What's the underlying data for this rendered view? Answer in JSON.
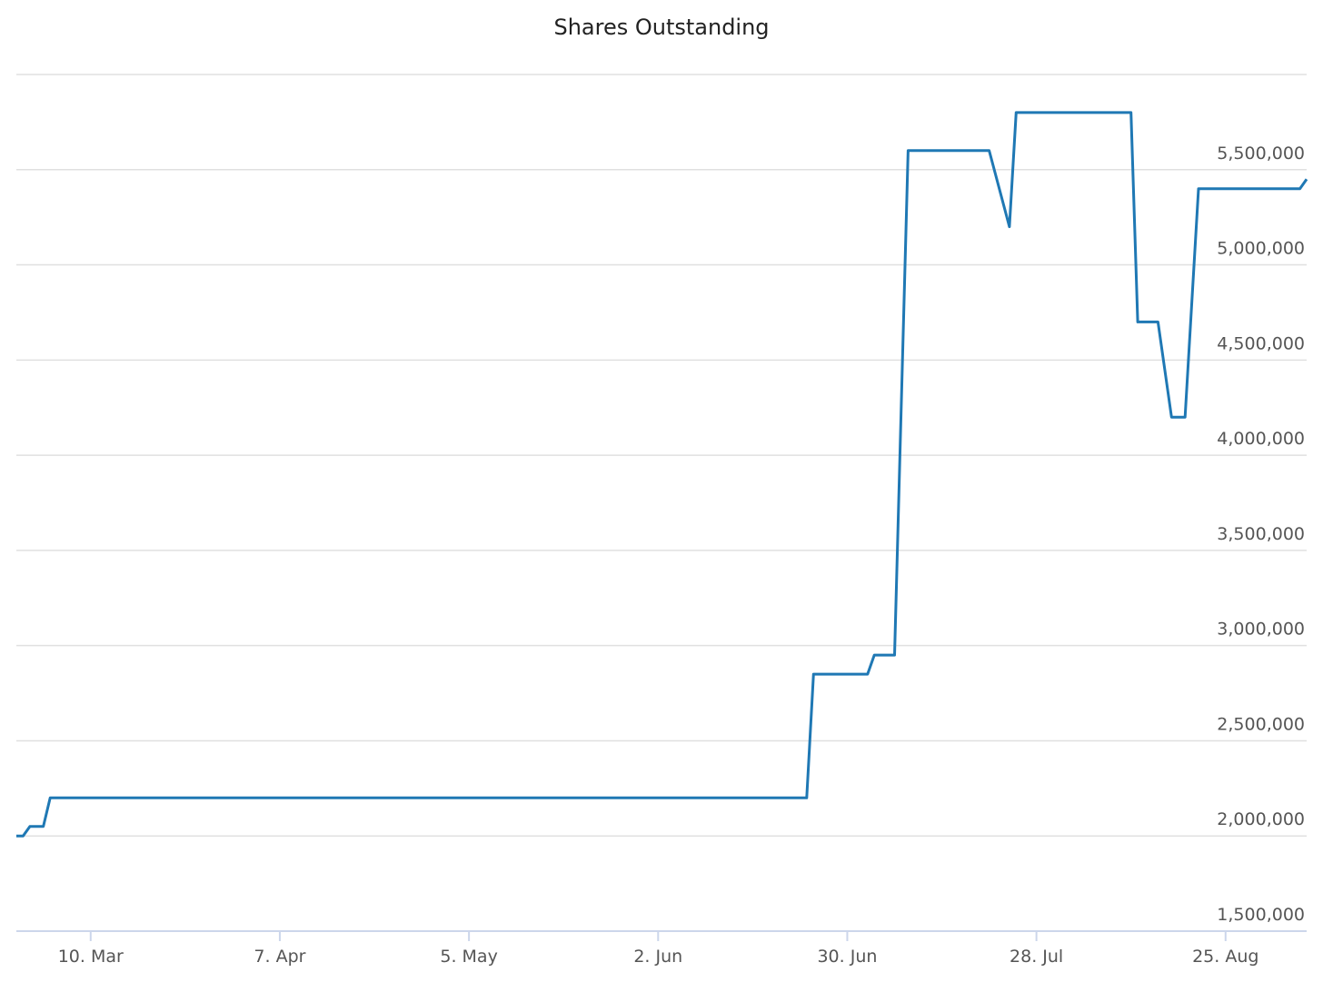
{
  "chart_data": {
    "type": "line",
    "title": "Shares Outstanding",
    "color": "#1f78b4",
    "grid": true,
    "x": [
      "02-27",
      "02-28",
      "03-01",
      "03-03",
      "03-04",
      "06-24",
      "06-25",
      "07-03",
      "07-04",
      "07-07",
      "07-09",
      "07-21",
      "07-24",
      "07-25",
      "08-11",
      "08-12",
      "08-15",
      "08-17",
      "08-19",
      "08-21",
      "09-05",
      "09-06"
    ],
    "values": [
      2000000,
      2000000,
      2050000,
      2050000,
      2200000,
      2200000,
      2850000,
      2850000,
      2950000,
      2950000,
      5600000,
      5600000,
      5200000,
      5800000,
      5800000,
      4700000,
      4700000,
      4200000,
      4200000,
      5400000,
      5400000,
      5450000
    ],
    "xlim": [
      "02-27",
      "09-06"
    ],
    "xticks": [
      {
        "value": "03-10",
        "label": "10. Mar"
      },
      {
        "value": "04-07",
        "label": "7. Apr"
      },
      {
        "value": "05-05",
        "label": "5. May"
      },
      {
        "value": "06-02",
        "label": "2. Jun"
      },
      {
        "value": "06-30",
        "label": "30. Jun"
      },
      {
        "value": "07-28",
        "label": "28. Jul"
      },
      {
        "value": "08-25",
        "label": "25. Aug"
      }
    ],
    "ylim": [
      1500000,
      6000000
    ],
    "yticks": [
      {
        "value": 1500000,
        "label": "1,500,000"
      },
      {
        "value": 2000000,
        "label": "2,000,000"
      },
      {
        "value": 2500000,
        "label": "2,500,000"
      },
      {
        "value": 3000000,
        "label": "3,000,000"
      },
      {
        "value": 3500000,
        "label": "3,500,000"
      },
      {
        "value": 4000000,
        "label": "4,000,000"
      },
      {
        "value": 4500000,
        "label": "4,500,000"
      },
      {
        "value": 5000000,
        "label": "5,000,000"
      },
      {
        "value": 5500000,
        "label": "5,500,000"
      }
    ]
  }
}
